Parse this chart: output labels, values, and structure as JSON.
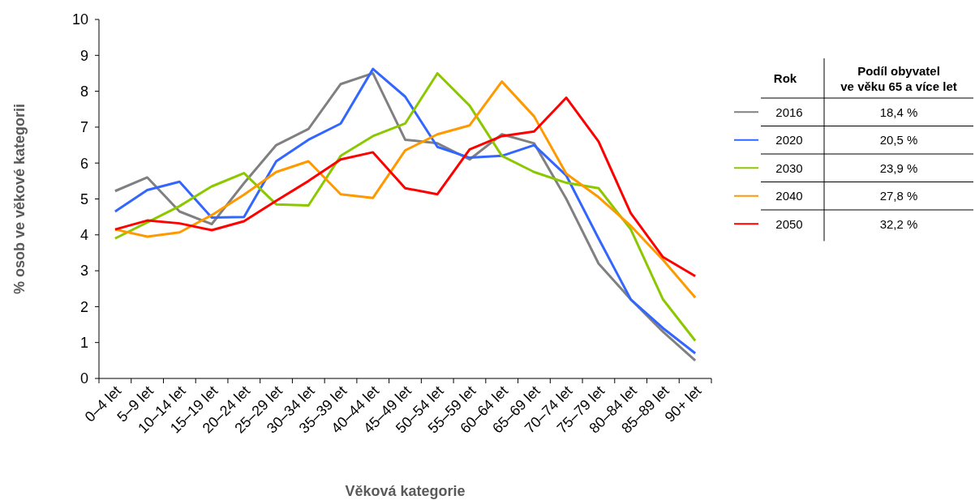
{
  "chart_data": {
    "type": "line",
    "xlabel": "Věková kategorie",
    "ylabel": "% osob ve věkové kategorii",
    "legend_title": "Rok",
    "legend": "right",
    "grid": false,
    "marker": "none",
    "line_style": "solid",
    "categories": [
      "0–4 let",
      "5–9 let",
      "10–14 let",
      "15–19 let",
      "20–24 let",
      "25–29 let",
      "30–34 let",
      "35–39 let",
      "40–44 let",
      "45–49 let",
      "50–54 let",
      "55–59 let",
      "60–64 let",
      "65–69 let",
      "70–74 let",
      "75–79 let",
      "80–84 let",
      "85–89 let",
      "90+ let"
    ],
    "ylim": [
      0,
      10
    ],
    "yticks": [
      0,
      1,
      2,
      3,
      4,
      5,
      6,
      7,
      8,
      9,
      10
    ],
    "series": [
      {
        "name": "2016",
        "color": "#808080",
        "values": [
          5.22,
          5.6,
          4.65,
          4.3,
          5.44,
          6.5,
          6.95,
          8.2,
          8.5,
          6.65,
          6.55,
          6.1,
          6.8,
          6.55,
          5.0,
          3.2,
          2.2,
          1.3,
          0.5
        ]
      },
      {
        "name": "2020",
        "color": "#3366ff",
        "values": [
          4.65,
          5.25,
          5.48,
          4.48,
          4.5,
          6.05,
          6.65,
          7.1,
          8.62,
          7.85,
          6.45,
          6.15,
          6.2,
          6.5,
          5.65,
          3.9,
          2.2,
          1.4,
          0.7
        ]
      },
      {
        "name": "2030",
        "color": "#8cc800",
        "values": [
          3.9,
          4.35,
          4.8,
          5.35,
          5.72,
          4.85,
          4.82,
          6.2,
          6.75,
          7.1,
          8.5,
          7.6,
          6.2,
          5.75,
          5.45,
          5.3,
          4.15,
          2.2,
          1.05
        ]
      },
      {
        "name": "2040",
        "color": "#ff9900",
        "values": [
          4.15,
          3.95,
          4.07,
          4.55,
          5.12,
          5.75,
          6.05,
          5.13,
          5.03,
          6.35,
          6.8,
          7.05,
          8.27,
          7.3,
          5.7,
          5.05,
          4.25,
          3.3,
          2.25
        ]
      },
      {
        "name": "2050",
        "color": "#ff0000",
        "values": [
          4.15,
          4.4,
          4.32,
          4.13,
          4.38,
          4.95,
          5.5,
          6.1,
          6.3,
          5.3,
          5.13,
          6.38,
          6.75,
          6.88,
          7.82,
          6.6,
          4.6,
          3.38,
          2.85
        ]
      }
    ],
    "annotations": [
      "Podíl obyvatel ve věku 65 a více let",
      "18,4 %",
      "20,5 %",
      "23,9 %",
      "27,8 %",
      "32,2 %"
    ]
  }
}
